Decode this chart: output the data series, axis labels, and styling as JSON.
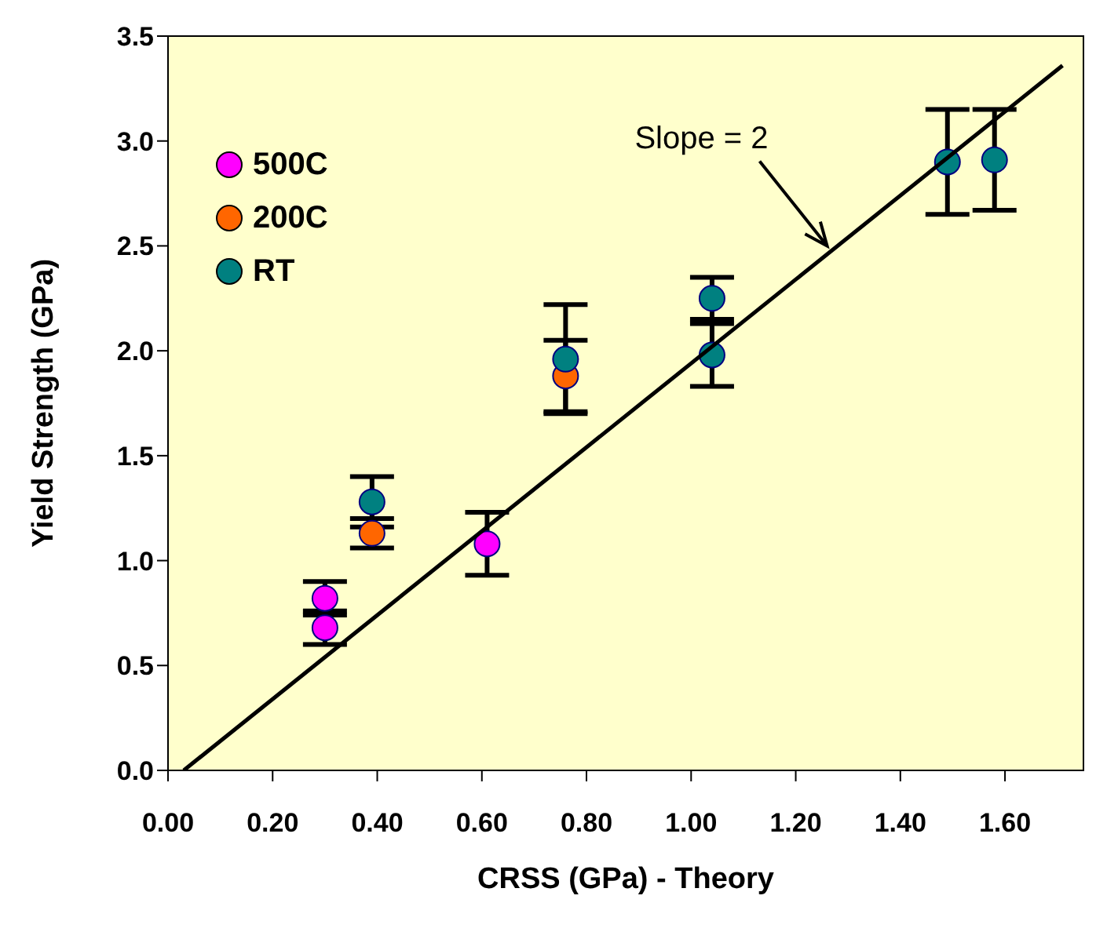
{
  "chart_data": {
    "type": "scatter",
    "xlabel": "CRSS (GPa) - Theory",
    "ylabel": "Yield Strength (GPa)",
    "xlim": [
      0,
      1.75
    ],
    "xticks": [
      {
        "value": 0,
        "label": "0.00"
      },
      {
        "value": 0.2,
        "label": "0.20"
      },
      {
        "value": 0.4,
        "label": "0.40"
      },
      {
        "value": 0.6,
        "label": "0.60"
      },
      {
        "value": 0.8,
        "label": "0.80"
      },
      {
        "value": 1.0,
        "label": "1.00"
      },
      {
        "value": 1.2,
        "label": "1.20"
      },
      {
        "value": 1.4,
        "label": "1.40"
      },
      {
        "value": 1.6,
        "label": "1.60"
      }
    ],
    "ylim": [
      0,
      3.5
    ],
    "yticks": [
      {
        "value": 0,
        "label": "0.0"
      },
      {
        "value": 0.5,
        "label": "0.5"
      },
      {
        "value": 1.0,
        "label": "1.0"
      },
      {
        "value": 1.5,
        "label": "1.5"
      },
      {
        "value": 2.0,
        "label": "2.0"
      },
      {
        "value": 2.5,
        "label": "2.5"
      },
      {
        "value": 3.0,
        "label": "3.0"
      },
      {
        "value": 3.5,
        "label": "3.5"
      }
    ],
    "legend": "top left",
    "marker": "circle",
    "series": [
      {
        "name": "500C",
        "color": "#ff00ff",
        "x": [
          0.3,
          0.3,
          0.61
        ],
        "values": [
          0.82,
          0.68,
          1.08
        ],
        "errors": [
          0.08,
          0.08,
          0.15
        ]
      },
      {
        "name": "200C",
        "color": "#ff6600",
        "x": [
          0.39,
          0.76
        ],
        "values": [
          1.13,
          1.88
        ],
        "errors": [
          0.07,
          0.17
        ]
      },
      {
        "name": "RT",
        "color": "#008080",
        "x": [
          0.39,
          0.76,
          1.04,
          1.04,
          1.49,
          1.58
        ],
        "values": [
          1.28,
          1.96,
          2.25,
          1.98,
          2.9,
          2.91
        ],
        "errors": [
          0.12,
          0.26,
          0.1,
          0.15,
          0.25,
          0.24
        ]
      },
      {
        "type": "line",
        "color": "#000000",
        "x": [
          0.03,
          1.71
        ],
        "values": [
          0,
          3.36
        ],
        "marker": "none"
      }
    ],
    "annotations": [
      {
        "text": "Slope = 2",
        "x": 1.26,
        "y": 2.5
      }
    ]
  }
}
